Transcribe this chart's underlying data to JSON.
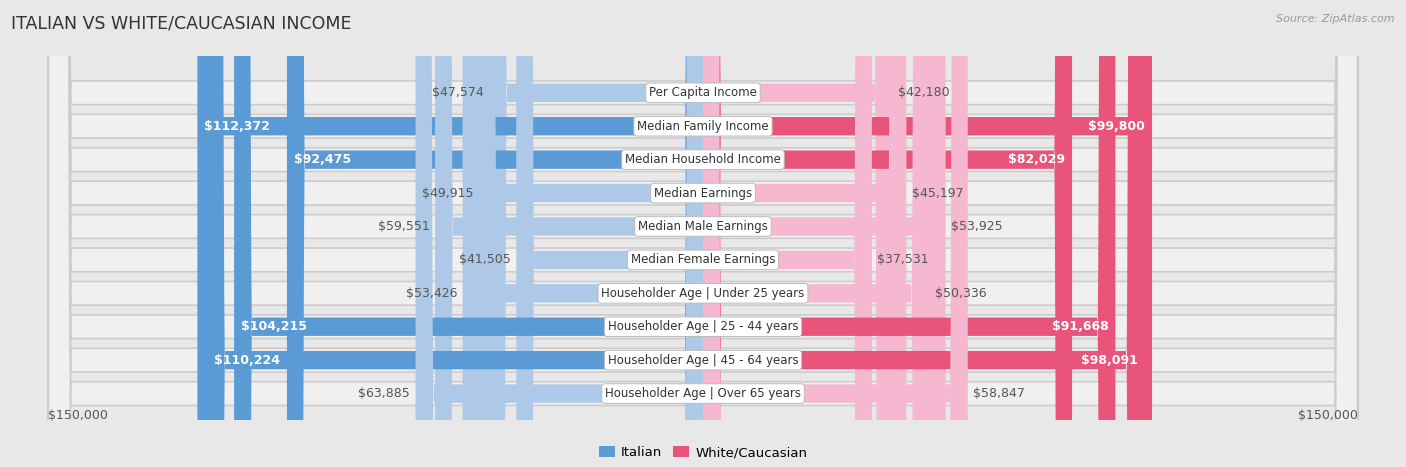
{
  "title": "ITALIAN VS WHITE/CAUCASIAN INCOME",
  "source": "Source: ZipAtlas.com",
  "categories": [
    "Per Capita Income",
    "Median Family Income",
    "Median Household Income",
    "Median Earnings",
    "Median Male Earnings",
    "Median Female Earnings",
    "Householder Age | Under 25 years",
    "Householder Age | 25 - 44 years",
    "Householder Age | 45 - 64 years",
    "Householder Age | Over 65 years"
  ],
  "italian_values": [
    47574,
    112372,
    92475,
    49915,
    59551,
    41505,
    53426,
    104215,
    110224,
    63885
  ],
  "white_values": [
    42180,
    99800,
    82029,
    45197,
    53925,
    37531,
    50336,
    91668,
    98091,
    58847
  ],
  "italian_labels": [
    "$47,574",
    "$112,372",
    "$92,475",
    "$49,915",
    "$59,551",
    "$41,505",
    "$53,426",
    "$104,215",
    "$110,224",
    "$63,885"
  ],
  "white_labels": [
    "$42,180",
    "$99,800",
    "$82,029",
    "$45,197",
    "$53,925",
    "$37,531",
    "$50,336",
    "$91,668",
    "$98,091",
    "$58,847"
  ],
  "max_value": 150000,
  "italian_color_light": "#aec9e8",
  "italian_color_dark": "#5b9bd5",
  "white_color_light": "#f5b8d0",
  "white_color_dark": "#e8547a",
  "bg_color": "#e8e8e8",
  "row_bg_color": "#f0f0f0",
  "threshold_italian": 70000,
  "threshold_white": 70000,
  "x_label_left": "$150,000",
  "x_label_right": "$150,000",
  "legend_italian": "Italian",
  "legend_white": "White/Caucasian"
}
